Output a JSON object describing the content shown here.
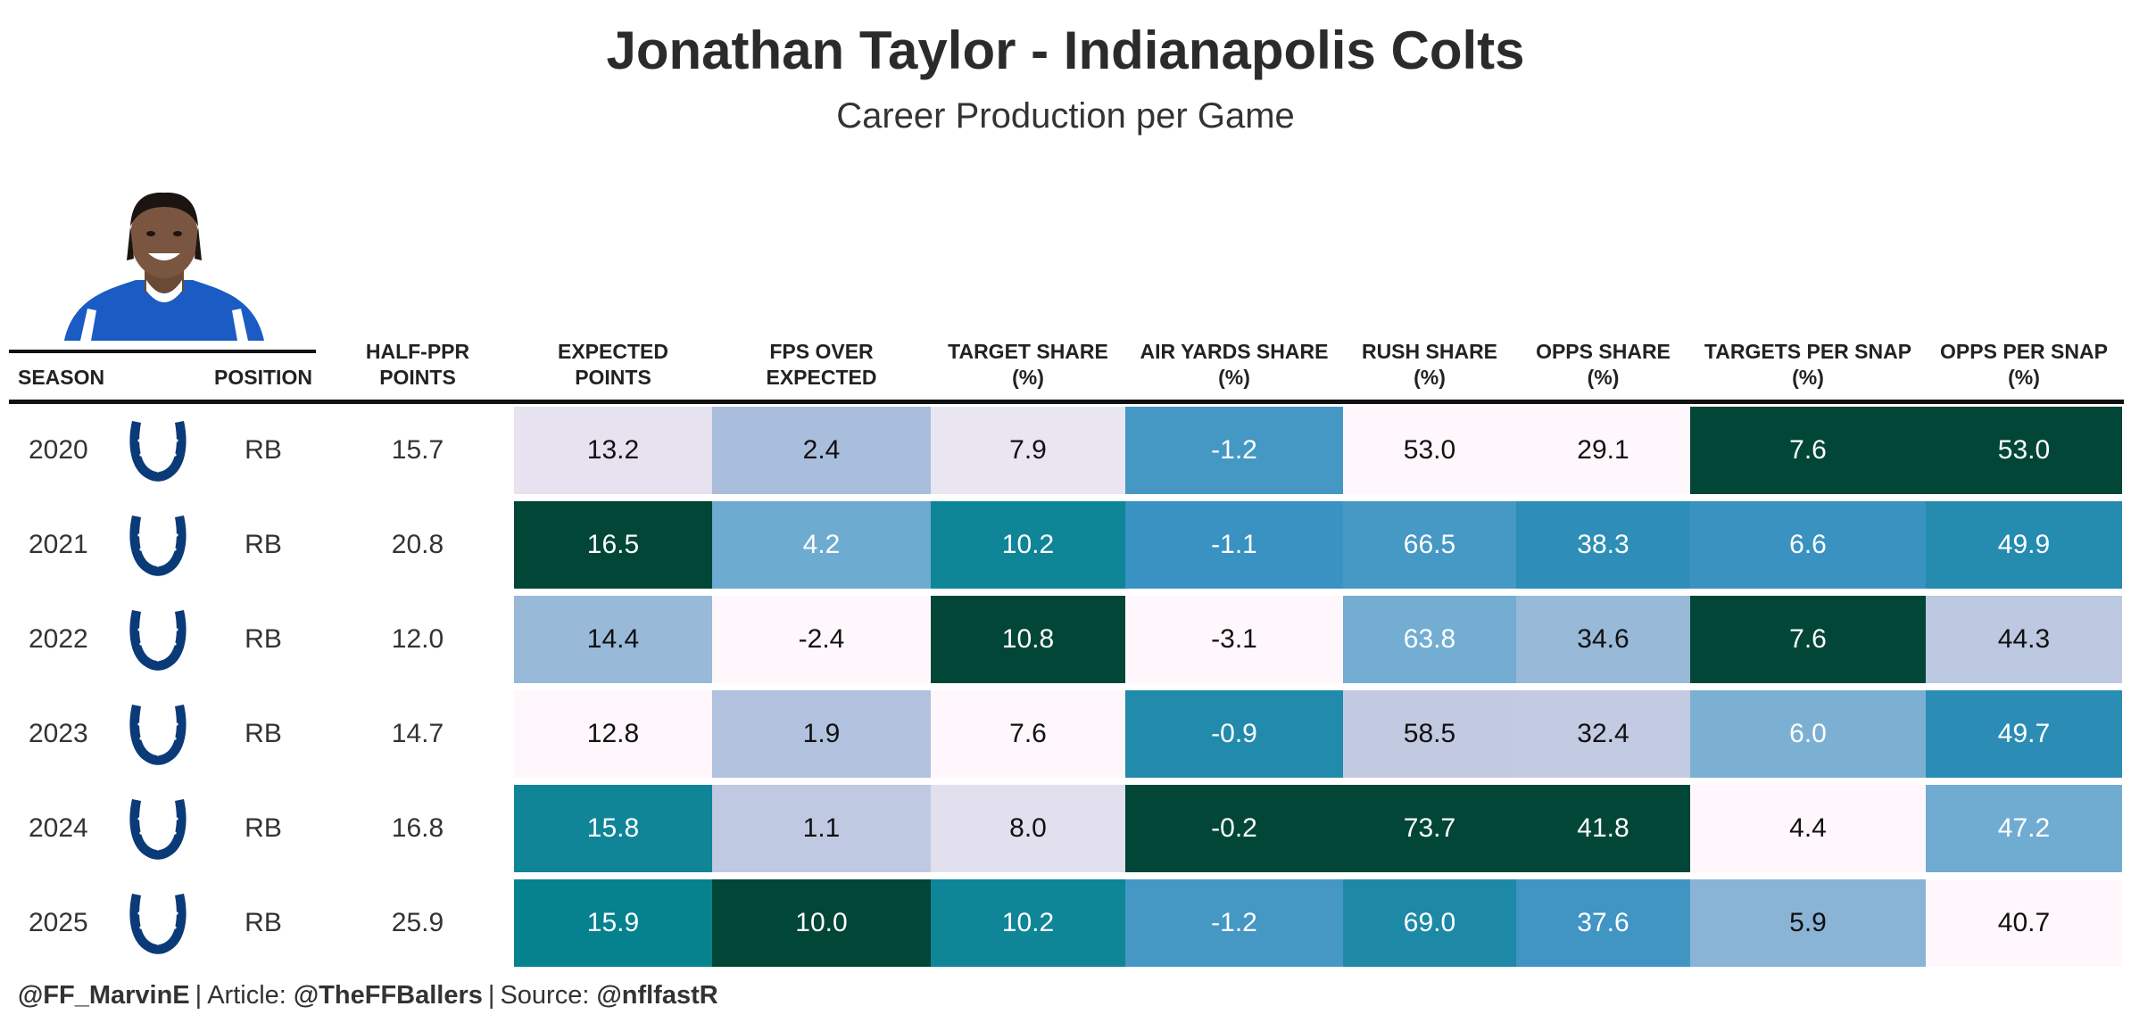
{
  "header": {
    "title": "Jonathan Taylor - Indianapolis Colts",
    "subtitle": "Career Production per Game"
  },
  "images": {
    "player_photo": "player-headshot",
    "team_logo": "colts-horseshoe-logo"
  },
  "colors": {
    "low": "#fff7fb",
    "mid_low": "#a6bddb",
    "mid": "#3690c0",
    "mid_high": "#02818a",
    "high": "#014636"
  },
  "chart_data": {
    "type": "table",
    "title": "Jonathan Taylor - Indianapolis Colts",
    "subtitle": "Career Production per Game",
    "columns": [
      {
        "key": "season",
        "label": "SEASON"
      },
      {
        "key": "logo",
        "label": ""
      },
      {
        "key": "position",
        "label": "POSITION"
      },
      {
        "key": "half_ppr",
        "label": "HALF-PPR\nPOINTS"
      },
      {
        "key": "expected_points",
        "label": "EXPECTED\nPOINTS"
      },
      {
        "key": "fps_over_expected",
        "label": "FPS OVER\nEXPECTED"
      },
      {
        "key": "target_share",
        "label": "TARGET SHARE\n(%)"
      },
      {
        "key": "air_yards_share",
        "label": "AIR YARDS SHARE\n(%)"
      },
      {
        "key": "rush_share",
        "label": "RUSH SHARE\n(%)"
      },
      {
        "key": "opps_share",
        "label": "OPPS SHARE\n(%)"
      },
      {
        "key": "targets_per_snap",
        "label": "TARGETS PER SNAP\n(%)"
      },
      {
        "key": "opps_per_snap",
        "label": "OPPS PER SNAP\n(%)"
      }
    ],
    "rows": [
      {
        "season": "2020",
        "position": "RB",
        "half_ppr": "15.7",
        "expected_points": "13.2",
        "fps_over_expected": "2.4",
        "target_share": "7.9",
        "air_yards_share": "-1.2",
        "rush_share": "53.0",
        "opps_share": "29.1",
        "targets_per_snap": "7.6",
        "opps_per_snap": "53.0"
      },
      {
        "season": "2021",
        "position": "RB",
        "half_ppr": "20.8",
        "expected_points": "16.5",
        "fps_over_expected": "4.2",
        "target_share": "10.2",
        "air_yards_share": "-1.1",
        "rush_share": "66.5",
        "opps_share": "38.3",
        "targets_per_snap": "6.6",
        "opps_per_snap": "49.9"
      },
      {
        "season": "2022",
        "position": "RB",
        "half_ppr": "12.0",
        "expected_points": "14.4",
        "fps_over_expected": "-2.4",
        "target_share": "10.8",
        "air_yards_share": "-3.1",
        "rush_share": "63.8",
        "opps_share": "34.6",
        "targets_per_snap": "7.6",
        "opps_per_snap": "44.3"
      },
      {
        "season": "2023",
        "position": "RB",
        "half_ppr": "14.7",
        "expected_points": "12.8",
        "fps_over_expected": "1.9",
        "target_share": "7.6",
        "air_yards_share": "-0.9",
        "rush_share": "58.5",
        "opps_share": "32.4",
        "targets_per_snap": "6.0",
        "opps_per_snap": "49.7"
      },
      {
        "season": "2024",
        "position": "RB",
        "half_ppr": "16.8",
        "expected_points": "15.8",
        "fps_over_expected": "1.1",
        "target_share": "8.0",
        "air_yards_share": "-0.2",
        "rush_share": "73.7",
        "opps_share": "41.8",
        "targets_per_snap": "4.4",
        "opps_per_snap": "47.2"
      },
      {
        "season": "2025",
        "position": "RB",
        "half_ppr": "25.9",
        "expected_points": "15.9",
        "fps_over_expected": "10.0",
        "target_share": "10.2",
        "air_yards_share": "-1.2",
        "rush_share": "69.0",
        "opps_share": "37.6",
        "targets_per_snap": "5.9",
        "opps_per_snap": "40.7"
      }
    ],
    "heatmap_columns": [
      "expected_points",
      "fps_over_expected",
      "target_share",
      "air_yards_share",
      "rush_share",
      "opps_share",
      "targets_per_snap",
      "opps_per_snap"
    ]
  },
  "footer": {
    "author": "@FF_MarvinE",
    "separator": "|",
    "article_label": "Article:",
    "article_handle": "@TheFFBallers",
    "source_label": "Source:",
    "source_handle": "@nflfastR"
  }
}
